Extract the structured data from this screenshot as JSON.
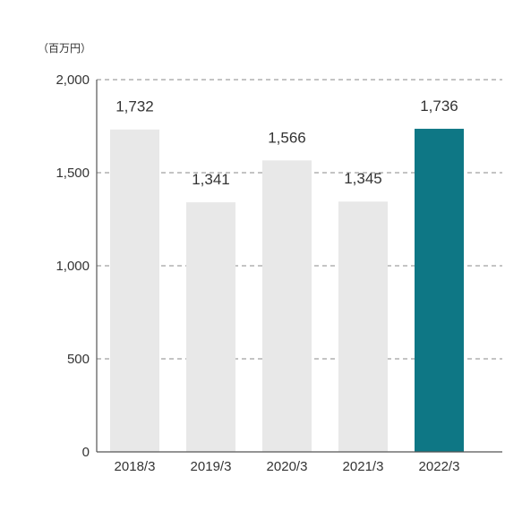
{
  "chart_data": {
    "type": "bar",
    "unit_label": "（百万円）",
    "categories": [
      "2018/3",
      "2019/3",
      "2020/3",
      "2021/3",
      "2022/3"
    ],
    "values": [
      1732,
      1341,
      1566,
      1345,
      1736
    ],
    "value_labels": [
      "1,732",
      "1,341",
      "1,566",
      "1,345",
      "1,736"
    ],
    "y_ticks": [
      0,
      500,
      1000,
      1500,
      2000
    ],
    "y_tick_labels": [
      "0",
      "500",
      "1,000",
      "1,500",
      "2,000"
    ],
    "ylim": [
      0,
      2000
    ],
    "grid": true,
    "colors": {
      "bar": "#e8e8e8",
      "highlight": "#0e7785"
    },
    "highlight_index": 4
  }
}
